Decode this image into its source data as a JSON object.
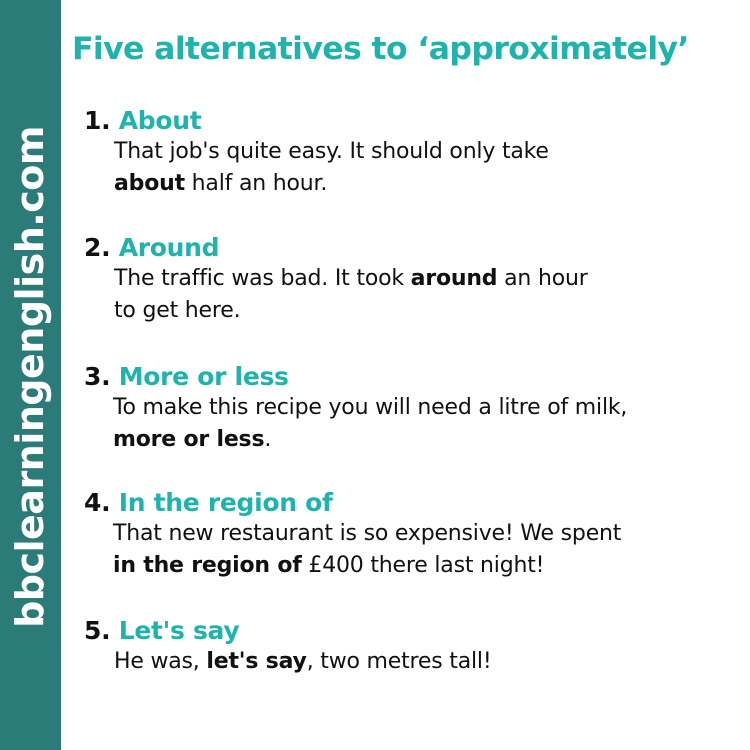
{
  "sidebar": {
    "text": "bbclearningenglish.com",
    "color": "#2b7b78"
  },
  "title": "Five alternatives to ‘approximately’",
  "accent_color": "#1fb3ad",
  "items": [
    {
      "number": "1.",
      "phrase": "About",
      "lines": [
        {
          "before": "That job's quite easy. It should only take",
          "bold": "",
          "after": ""
        },
        {
          "before": "",
          "bold": "about",
          "after": " half an hour."
        }
      ]
    },
    {
      "number": "2.",
      "phrase": "Around",
      "lines": [
        {
          "before": "The traffic was bad. It took ",
          "bold": "around",
          "after": " an hour"
        },
        {
          "before": "to get here.",
          "bold": "",
          "after": ""
        }
      ]
    },
    {
      "number": "3.",
      "phrase": "More or less",
      "lines": [
        {
          "before": "To make this recipe you will need a litre of milk,",
          "bold": "",
          "after": ""
        },
        {
          "before": "",
          "bold": "more or less",
          "after": "."
        }
      ]
    },
    {
      "number": "4.",
      "phrase": "In the region of",
      "lines": [
        {
          "before": "That new restaurant is so expensive! We spent",
          "bold": "",
          "after": ""
        },
        {
          "before": "",
          "bold": "in the region of",
          "after": " £400 there last night!"
        }
      ]
    },
    {
      "number": "5.",
      "phrase": "Let's say",
      "lines": [
        {
          "before": "He was, ",
          "bold": "let's say",
          "after": ", two metres tall!"
        }
      ]
    }
  ]
}
